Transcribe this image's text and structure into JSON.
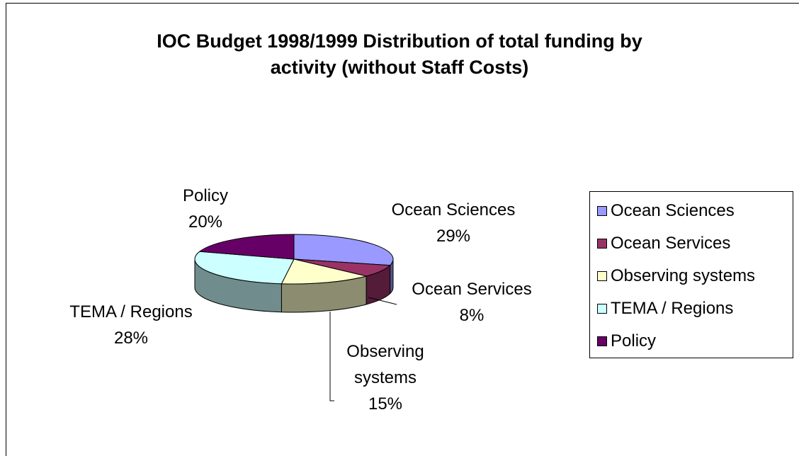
{
  "chart_data": {
    "type": "pie",
    "title_lines": [
      "IOC Budget 1998/1999 Distribution of total funding by",
      "activity (without Staff Costs)"
    ],
    "slices": [
      {
        "name": "Ocean Sciences",
        "value": 29,
        "pct_label": "29%",
        "color": "#9999ff"
      },
      {
        "name": "Ocean Services",
        "value": 8,
        "pct_label": "8%",
        "color": "#993366"
      },
      {
        "name": "Observing systems",
        "value": 15,
        "pct_label": "15%",
        "color": "#ffffcc"
      },
      {
        "name": "TEMA / Regions",
        "value": 28,
        "pct_label": "28%",
        "color": "#ccffff"
      },
      {
        "name": "Policy",
        "value": 20,
        "pct_label": "20%",
        "color": "#660066"
      }
    ],
    "legend_position": "right",
    "style": "3d"
  }
}
